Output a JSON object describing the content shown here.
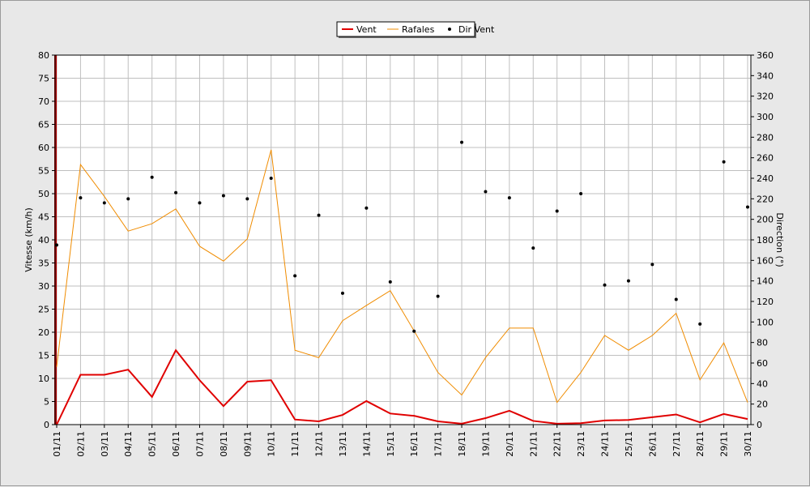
{
  "chart_data": {
    "type": "line",
    "categories": [
      "01/11",
      "02/11",
      "03/11",
      "04/11",
      "05/11",
      "06/11",
      "07/11",
      "08/11",
      "09/11",
      "10/11",
      "11/11",
      "12/11",
      "13/11",
      "14/11",
      "15/11",
      "16/11",
      "17/11",
      "18/11",
      "19/11",
      "20/11",
      "21/11",
      "22/11",
      "23/11",
      "24/11",
      "25/11",
      "26/11",
      "27/11",
      "28/11",
      "29/11",
      "30/11"
    ],
    "ylabel": "Vitesse (km/h)",
    "y2label": "Direction (°)",
    "ylim": [
      0,
      80
    ],
    "y2lim": [
      0,
      360
    ],
    "yticks": [
      0,
      5,
      10,
      15,
      20,
      25,
      30,
      35,
      40,
      45,
      50,
      55,
      60,
      65,
      70,
      75,
      80
    ],
    "y2ticks": [
      0,
      20,
      40,
      60,
      80,
      100,
      120,
      140,
      160,
      180,
      200,
      220,
      240,
      260,
      280,
      300,
      320,
      340,
      360
    ],
    "grid": true,
    "legend_position": "top-center",
    "series": [
      {
        "name": "Vent",
        "kind": "line",
        "axis": "left",
        "color": "#e00000",
        "values": [
          0,
          10.8,
          10.8,
          11.9,
          6.0,
          16.1,
          9.6,
          4.0,
          9.3,
          9.6,
          1.1,
          0.7,
          2.1,
          5.1,
          2.4,
          1.9,
          0.7,
          0.2,
          1.4,
          3.0,
          0.8,
          0.2,
          0.3,
          0.9,
          1.0,
          1.6,
          2.2,
          0.5,
          2.3,
          1.2
        ]
      },
      {
        "name": "Rafales",
        "kind": "line",
        "axis": "left",
        "color": "#f08c00",
        "values": [
          12.5,
          56.3,
          49.4,
          41.9,
          43.5,
          46.7,
          38.6,
          35.4,
          40.2,
          59.5,
          16.1,
          14.5,
          22.5,
          25.8,
          29.0,
          20.3,
          11.3,
          6.4,
          14.5,
          20.9,
          20.9,
          4.8,
          11.3,
          19.3,
          16.1,
          19.3,
          24.1,
          9.7,
          17.7,
          4.8
        ]
      },
      {
        "name": "Dir Vent",
        "kind": "scatter",
        "axis": "right",
        "color": "#000000",
        "values": [
          175,
          221,
          216,
          220,
          241,
          226,
          216,
          223,
          220,
          240,
          145,
          204,
          128,
          211,
          139,
          91,
          125,
          275,
          227,
          221,
          172,
          208,
          225,
          136,
          140,
          156,
          122,
          98,
          256,
          212
        ]
      }
    ]
  }
}
